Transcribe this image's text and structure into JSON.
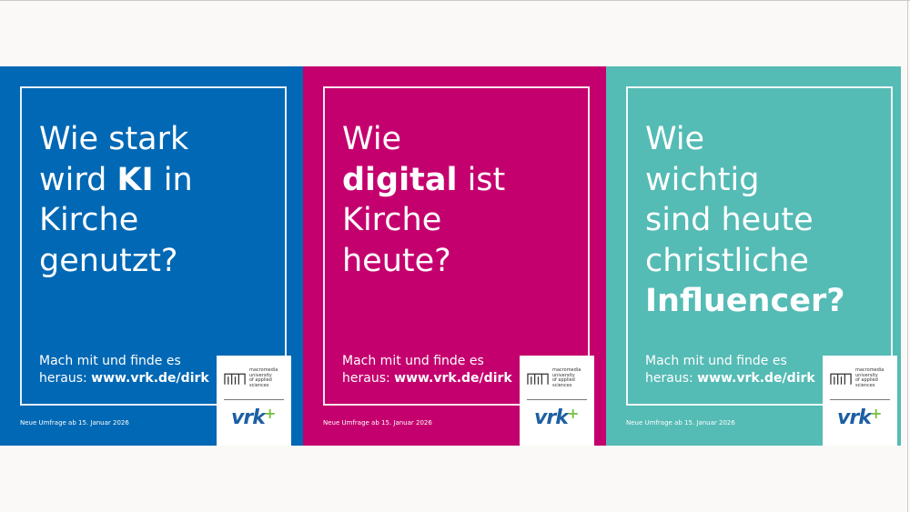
{
  "colors": {
    "blue": "#0068b4",
    "magenta": "#c4006e",
    "teal": "#55bbb5",
    "background": "#faf9f7"
  },
  "panels": [
    {
      "question": {
        "before": "Wie stark wird ",
        "bold": "KI",
        "after": " in Kirche genutzt?"
      },
      "cta": {
        "text": "Mach mit und finde es heraus: ",
        "url": "www.vrk.de/dirk"
      },
      "date": "Neue Umfrage ab 15. Januar 2026"
    },
    {
      "question": {
        "before": "Wie ",
        "bold": "digital",
        "after": " ist Kirche heute?"
      },
      "cta": {
        "text": "Mach mit und finde es heraus: ",
        "url": "www.vrk.de/dirk"
      },
      "date": "Neue Umfrage ab 15. Januar 2026"
    },
    {
      "question": {
        "before": "Wie wichtig sind heute christliche ",
        "bold": "Influencer?",
        "after": ""
      },
      "cta": {
        "text": "Mach mit und finde es heraus: ",
        "url": "www.vrk.de/dirk"
      },
      "date": "Neue Umfrage ab 15. Januar 2026"
    }
  ],
  "logos": {
    "macromedia": [
      "macromedia",
      "university",
      "of applied sciences"
    ],
    "vrk": "vrk",
    "vrk_plus": "+"
  }
}
